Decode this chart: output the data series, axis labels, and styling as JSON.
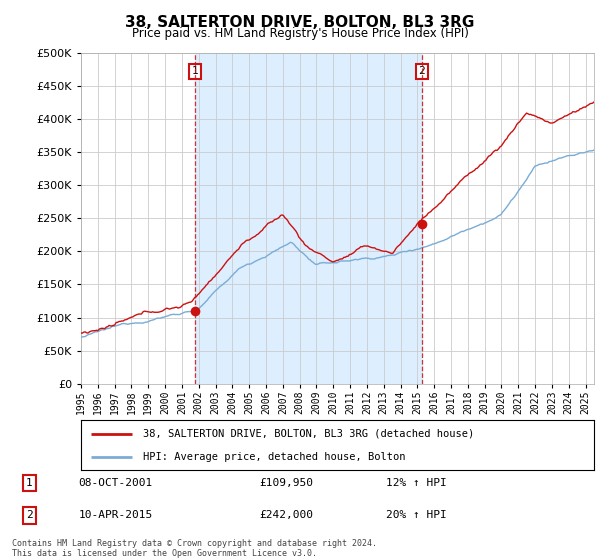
{
  "title": "38, SALTERTON DRIVE, BOLTON, BL3 3RG",
  "subtitle": "Price paid vs. HM Land Registry's House Price Index (HPI)",
  "ytick_values": [
    0,
    50000,
    100000,
    150000,
    200000,
    250000,
    300000,
    350000,
    400000,
    450000,
    500000
  ],
  "ylim": [
    0,
    500000
  ],
  "xlim_start": 1995.0,
  "xlim_end": 2025.5,
  "hpi_color": "#7aacd6",
  "price_color": "#cc1111",
  "vline_color": "#cc1111",
  "shade_color": "#ddeeff",
  "transaction1": {
    "date_num": 2001.77,
    "price": 109950,
    "label": "1",
    "date_str": "08-OCT-2001",
    "pct": "12%",
    "dir": "↑"
  },
  "transaction2": {
    "date_num": 2015.27,
    "price": 242000,
    "label": "2",
    "date_str": "10-APR-2015",
    "pct": "20%",
    "dir": "↑"
  },
  "legend_label_price": "38, SALTERTON DRIVE, BOLTON, BL3 3RG (detached house)",
  "legend_label_hpi": "HPI: Average price, detached house, Bolton",
  "footnote": "Contains HM Land Registry data © Crown copyright and database right 2024.\nThis data is licensed under the Open Government Licence v3.0.",
  "background_color": "#ffffff",
  "grid_color": "#cccccc",
  "xtick_years": [
    1995,
    1996,
    1997,
    1998,
    1999,
    2000,
    2001,
    2002,
    2003,
    2004,
    2005,
    2006,
    2007,
    2008,
    2009,
    2010,
    2011,
    2012,
    2013,
    2014,
    2015,
    2016,
    2017,
    2018,
    2019,
    2020,
    2021,
    2022,
    2023,
    2024,
    2025
  ]
}
